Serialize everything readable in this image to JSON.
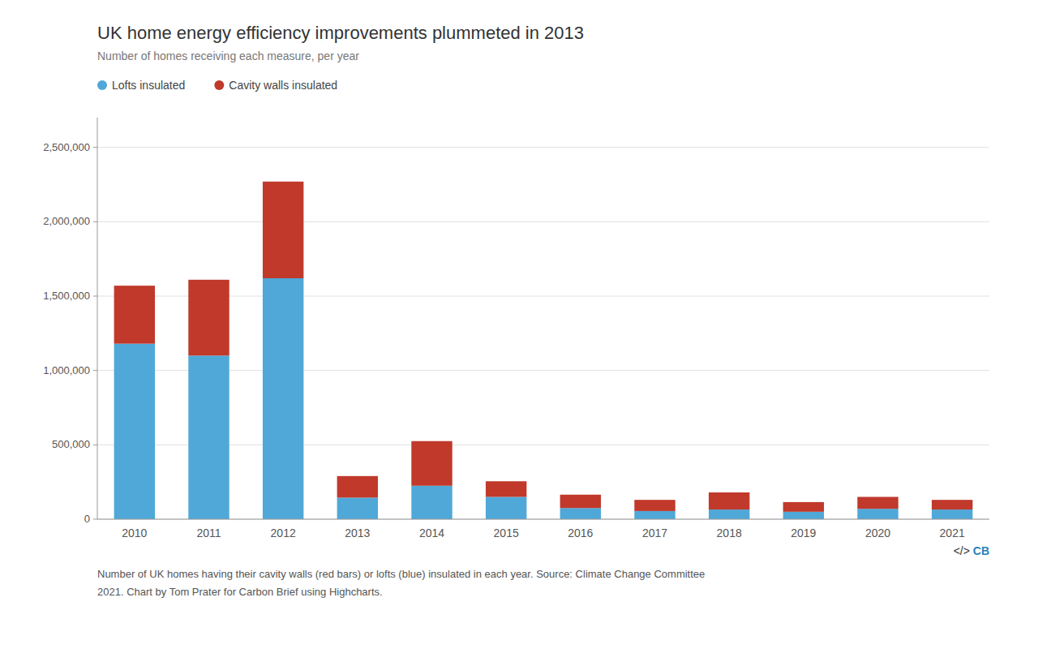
{
  "chart_data": {
    "type": "bar",
    "stacked": true,
    "title": "UK home energy efficiency improvements plummeted in 2013",
    "subtitle": "Number of homes receiving each measure, per year",
    "categories": [
      "2010",
      "2011",
      "2012",
      "2013",
      "2014",
      "2015",
      "2016",
      "2017",
      "2018",
      "2019",
      "2020",
      "2021"
    ],
    "series": [
      {
        "name": "Lofts insulated",
        "color": "#4fa8d8",
        "values": [
          1180000,
          1100000,
          1620000,
          145000,
          225000,
          150000,
          75000,
          55000,
          65000,
          50000,
          70000,
          65000
        ]
      },
      {
        "name": "Cavity walls insulated",
        "color": "#c0392b",
        "values": [
          390000,
          510000,
          650000,
          145000,
          300000,
          105000,
          90000,
          75000,
          115000,
          65000,
          80000,
          65000
        ]
      }
    ],
    "ylim": [
      0,
      2700000
    ],
    "yticks": [
      0,
      {
        "value": 500000,
        "label": "500,000"
      },
      {
        "value": 1000000,
        "label": "1,000,000"
      },
      {
        "value": 1500000,
        "label": "1,500,000"
      },
      {
        "value": 2000000,
        "label": "2,000,000"
      },
      {
        "value": 2500000,
        "label": "2,500,000"
      }
    ],
    "grid": true,
    "legend": "top",
    "annotations": [
      [
        "Number of UK homes having their cavity walls (red bars) or lofts (blue) insulated in each year. Source: ",
        "Climate Change Committee"
      ],
      [
        "2021",
        ". Chart by Tom Prater for Carbon Brief using ",
        "Highcharts",
        "."
      ],
      [
        "</> ",
        "CB"
      ]
    ]
  }
}
